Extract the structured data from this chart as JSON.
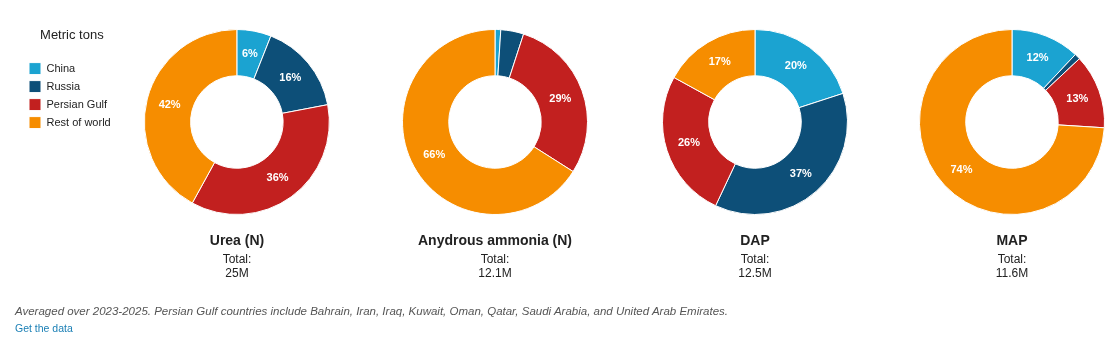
{
  "chart_data": [
    {
      "type": "donut",
      "title": "Urea (N)",
      "legend_title": "Metric tons",
      "legend": "left",
      "categories": [
        "China",
        "Russia",
        "Persian Gulf",
        "Rest of world"
      ],
      "values": [
        6,
        16,
        36,
        42
      ],
      "value_labels": [
        "6%",
        "16%",
        "36%",
        "42%"
      ],
      "colors": [
        "#1ba3d1",
        "#0d4f78",
        "#c2201f",
        "#f68d00"
      ],
      "annotations": [
        "Total:",
        "25M"
      ]
    },
    {
      "type": "donut",
      "title": "Anydrous ammonia (N)",
      "categories": [
        null,
        null,
        null,
        null
      ],
      "values": [
        1,
        4,
        29,
        66
      ],
      "value_labels": [
        null,
        null,
        "29%",
        "66%"
      ],
      "colors": [
        "#1ba3d1",
        "#0d4f78",
        "#c2201f",
        "#f68d00"
      ],
      "annotations": [
        "Total:",
        "12.1M"
      ]
    },
    {
      "type": "donut",
      "title": "DAP",
      "categories": [
        null,
        null,
        null,
        null
      ],
      "values": [
        20,
        37,
        26,
        17
      ],
      "value_labels": [
        "20%",
        "37%",
        "26%",
        "17%"
      ],
      "colors": [
        "#1ba3d1",
        "#0d4f78",
        "#c2201f",
        "#f68d00"
      ],
      "annotations": [
        "Total:",
        "12.5M"
      ]
    },
    {
      "type": "donut",
      "title": "MAP",
      "categories": [
        null,
        null,
        null,
        null
      ],
      "values": [
        12,
        1,
        13,
        74
      ],
      "value_labels": [
        "12%",
        null,
        "13%",
        "74%"
      ],
      "colors": [
        "#1ba3d1",
        "#0d4f78",
        "#c2201f",
        "#f68d00"
      ],
      "annotations": [
        "Total:",
        "11.6M",
        "Averaged over 2023-2025. Persian Gulf countries include Bahrain, Iran, Iraq, Kuwait, Oman, Qatar, Saudi Arabia, and United Arab Emirates.",
        "Get the data"
      ]
    }
  ]
}
